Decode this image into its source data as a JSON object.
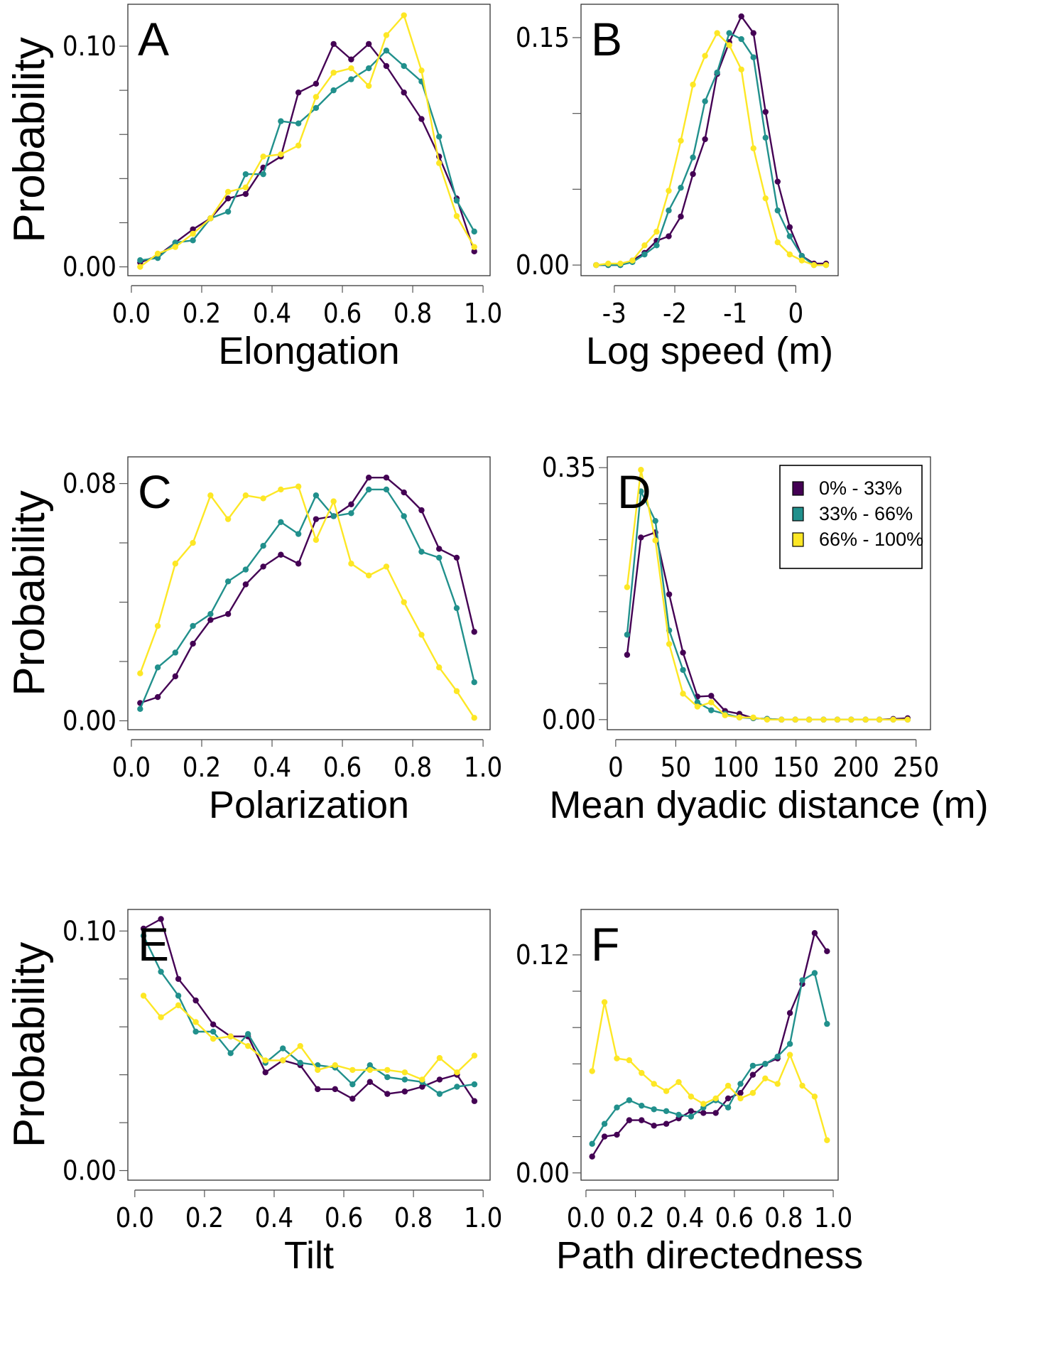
{
  "figure": {
    "series_styles": [
      {
        "name": "0% - 33%",
        "color": "#440154"
      },
      {
        "name": "33% - 66%",
        "color": "#21908C"
      },
      {
        "name": "66% - 100%",
        "color": "#FDE725"
      }
    ]
  },
  "chart_data": [
    {
      "panel": "A",
      "type": "line",
      "xlabel": "Elongation",
      "ylabel": "Probability",
      "xlim": [
        -0.01,
        1.02
      ],
      "ylim": [
        -0.004,
        0.119
      ],
      "xticks": [
        0.0,
        0.2,
        0.4,
        0.6,
        0.8,
        1.0
      ],
      "xtick_labels": [
        "0.0",
        "0.2",
        "0.4",
        "0.6",
        "0.8",
        "1.0"
      ],
      "yticks": [
        0.0,
        0.02,
        0.04,
        0.06,
        0.08,
        0.1
      ],
      "ytick_labels": [
        "0.00",
        "",
        "",
        "",
        "",
        "0.10"
      ],
      "x": [
        0.025,
        0.075,
        0.125,
        0.175,
        0.225,
        0.275,
        0.325,
        0.375,
        0.425,
        0.475,
        0.525,
        0.575,
        0.625,
        0.675,
        0.725,
        0.775,
        0.825,
        0.875,
        0.925,
        0.975
      ],
      "series": [
        {
          "name": "0% - 33%",
          "values": [
            0.002,
            0.005,
            0.011,
            0.017,
            0.022,
            0.031,
            0.033,
            0.045,
            0.05,
            0.079,
            0.083,
            0.101,
            0.094,
            0.101,
            0.091,
            0.079,
            0.067,
            0.05,
            0.031,
            0.007
          ]
        },
        {
          "name": "33% - 66%",
          "values": [
            0.003,
            0.004,
            0.011,
            0.012,
            0.022,
            0.025,
            0.042,
            0.042,
            0.066,
            0.065,
            0.072,
            0.08,
            0.085,
            0.09,
            0.098,
            0.091,
            0.084,
            0.059,
            0.03,
            0.016
          ]
        },
        {
          "name": "66% - 100%",
          "values": [
            0.0,
            0.006,
            0.009,
            0.015,
            0.022,
            0.034,
            0.036,
            0.05,
            0.051,
            0.055,
            0.077,
            0.088,
            0.09,
            0.082,
            0.105,
            0.114,
            0.089,
            0.047,
            0.023,
            0.009
          ]
        }
      ],
      "grid": false
    },
    {
      "panel": "B",
      "type": "line",
      "xlabel": "Log speed (m)",
      "ylabel": "",
      "xlim": [
        -3.55,
        0.7
      ],
      "ylim": [
        -0.007,
        0.172
      ],
      "xticks": [
        -3,
        -2,
        -1,
        0
      ],
      "xtick_labels": [
        "-3",
        "-2",
        "-1",
        "0"
      ],
      "yticks": [
        0.0,
        0.05,
        0.1,
        0.15
      ],
      "ytick_labels": [
        "0.00",
        "",
        "",
        "0.15"
      ],
      "x": [
        -3.3,
        -3.1,
        -2.9,
        -2.7,
        -2.5,
        -2.3,
        -2.1,
        -1.9,
        -1.7,
        -1.5,
        -1.3,
        -1.1,
        -0.9,
        -0.7,
        -0.5,
        -0.3,
        -0.1,
        0.1,
        0.3,
        0.5
      ],
      "series": [
        {
          "name": "0% - 33%",
          "values": [
            0.0,
            0.0,
            0.0,
            0.003,
            0.008,
            0.016,
            0.019,
            0.032,
            0.06,
            0.083,
            0.126,
            0.147,
            0.164,
            0.153,
            0.101,
            0.055,
            0.025,
            0.006,
            0.001,
            0.001
          ]
        },
        {
          "name": "33% - 66%",
          "values": [
            0.0,
            0.0,
            0.0,
            0.002,
            0.007,
            0.013,
            0.036,
            0.051,
            0.071,
            0.108,
            0.127,
            0.153,
            0.149,
            0.137,
            0.084,
            0.036,
            0.019,
            0.006,
            0.0,
            0.0
          ]
        },
        {
          "name": "66% - 100%",
          "values": [
            0.0,
            0.001,
            0.001,
            0.003,
            0.013,
            0.022,
            0.049,
            0.082,
            0.119,
            0.138,
            0.153,
            0.145,
            0.129,
            0.077,
            0.044,
            0.015,
            0.007,
            0.003,
            0.0,
            0.0
          ]
        }
      ],
      "grid": false
    },
    {
      "panel": "C",
      "type": "line",
      "xlabel": "Polarization",
      "ylabel": "Probability",
      "xlim": [
        -0.01,
        1.02
      ],
      "ylim": [
        -0.003,
        0.089
      ],
      "xticks": [
        0.0,
        0.2,
        0.4,
        0.6,
        0.8,
        1.0
      ],
      "xtick_labels": [
        "0.0",
        "0.2",
        "0.4",
        "0.6",
        "0.8",
        "1.0"
      ],
      "yticks": [
        0.0,
        0.02,
        0.04,
        0.06,
        0.08
      ],
      "ytick_labels": [
        "0.00",
        "",
        "",
        "",
        "0.08"
      ],
      "x": [
        0.025,
        0.075,
        0.125,
        0.175,
        0.225,
        0.275,
        0.325,
        0.375,
        0.425,
        0.475,
        0.525,
        0.575,
        0.625,
        0.675,
        0.725,
        0.775,
        0.825,
        0.875,
        0.925,
        0.975
      ],
      "series": [
        {
          "name": "0% - 33%",
          "values": [
            0.006,
            0.008,
            0.015,
            0.026,
            0.034,
            0.036,
            0.046,
            0.052,
            0.056,
            0.053,
            0.068,
            0.069,
            0.073,
            0.082,
            0.082,
            0.077,
            0.071,
            0.058,
            0.055,
            0.03
          ]
        },
        {
          "name": "33% - 66%",
          "values": [
            0.004,
            0.018,
            0.023,
            0.032,
            0.036,
            0.047,
            0.051,
            0.059,
            0.067,
            0.063,
            0.076,
            0.069,
            0.07,
            0.078,
            0.078,
            0.069,
            0.057,
            0.055,
            0.038,
            0.013
          ]
        },
        {
          "name": "66% - 100%",
          "values": [
            0.016,
            0.032,
            0.053,
            0.06,
            0.076,
            0.068,
            0.076,
            0.075,
            0.078,
            0.079,
            0.061,
            0.074,
            0.053,
            0.049,
            0.052,
            0.04,
            0.029,
            0.018,
            0.01,
            0.001
          ]
        }
      ],
      "grid": false
    },
    {
      "panel": "D",
      "type": "line",
      "xlabel": "Mean dyadic distance (m)",
      "ylabel": "",
      "xlim": [
        -7,
        262
      ],
      "ylim": [
        -0.014,
        0.365
      ],
      "xticks": [
        0,
        50,
        100,
        150,
        200,
        250
      ],
      "xtick_labels": [
        "0",
        "50",
        "100",
        "150",
        "200",
        "250"
      ],
      "yticks": [
        0.0,
        0.05,
        0.1,
        0.15,
        0.2,
        0.25,
        0.3,
        0.35
      ],
      "ytick_labels": [
        "0.00",
        "",
        "",
        "",
        "",
        "",
        "",
        "0.35"
      ],
      "x": [
        9.5,
        21,
        33,
        44.5,
        56,
        68,
        79.5,
        91,
        103,
        114.5,
        126,
        138,
        149.5,
        161,
        173,
        184.5,
        196,
        208,
        219.5,
        231,
        243
      ],
      "series": [
        {
          "name": "0% - 33%",
          "values": [
            0.09,
            0.253,
            0.26,
            0.174,
            0.093,
            0.032,
            0.033,
            0.012,
            0.008,
            0.002,
            0.001,
            0.0,
            0.0,
            0.0,
            0.0,
            0.0,
            0.0,
            0.0,
            0.0,
            0.001,
            0.002
          ]
        },
        {
          "name": "33% - 66%",
          "values": [
            0.118,
            0.317,
            0.276,
            0.124,
            0.069,
            0.024,
            0.013,
            0.008,
            0.003,
            0.002,
            0.001,
            0.0,
            0.0,
            0.0,
            0.0,
            0.0,
            0.0,
            0.0,
            0.0,
            0.0,
            0.0
          ]
        },
        {
          "name": "66% - 100%",
          "values": [
            0.184,
            0.347,
            0.249,
            0.105,
            0.036,
            0.018,
            0.024,
            0.006,
            0.003,
            0.003,
            0.0,
            0.0,
            0.0,
            0.0,
            0.0,
            0.0,
            0.0,
            0.0,
            0.0,
            0.0,
            0.0
          ]
        }
      ],
      "legend": {
        "position": "top-right",
        "entries": [
          "0% - 33%",
          "33% - 66%",
          "66% - 100%"
        ]
      },
      "grid": false
    },
    {
      "panel": "E",
      "type": "line",
      "xlabel": "Tilt",
      "ylabel": "Probability",
      "xlim": [
        -0.02,
        1.02
      ],
      "ylim": [
        -0.004,
        0.109
      ],
      "xticks": [
        0.0,
        0.2,
        0.4,
        0.6,
        0.8,
        1.0
      ],
      "xtick_labels": [
        "0.0",
        "0.2",
        "0.4",
        "0.6",
        "0.8",
        "1.0"
      ],
      "yticks": [
        0.0,
        0.02,
        0.04,
        0.06,
        0.08,
        0.1
      ],
      "ytick_labels": [
        "0.00",
        "",
        "",
        "",
        "",
        "0.10"
      ],
      "x": [
        0.025,
        0.075,
        0.125,
        0.175,
        0.225,
        0.275,
        0.325,
        0.375,
        0.425,
        0.475,
        0.525,
        0.575,
        0.625,
        0.675,
        0.725,
        0.775,
        0.825,
        0.875,
        0.925,
        0.975
      ],
      "series": [
        {
          "name": "0% - 33%",
          "values": [
            0.101,
            0.105,
            0.08,
            0.071,
            0.061,
            0.056,
            0.056,
            0.041,
            0.046,
            0.044,
            0.034,
            0.034,
            0.03,
            0.037,
            0.032,
            0.033,
            0.035,
            0.038,
            0.04,
            0.029
          ]
        },
        {
          "name": "33% - 66%",
          "values": [
            0.098,
            0.083,
            0.073,
            0.058,
            0.058,
            0.049,
            0.057,
            0.045,
            0.051,
            0.045,
            0.044,
            0.043,
            0.036,
            0.044,
            0.039,
            0.038,
            0.037,
            0.032,
            0.035,
            0.036
          ]
        },
        {
          "name": "66% - 100%",
          "values": [
            0.073,
            0.064,
            0.069,
            0.062,
            0.055,
            0.056,
            0.052,
            0.046,
            0.046,
            0.052,
            0.042,
            0.044,
            0.042,
            0.042,
            0.042,
            0.041,
            0.038,
            0.047,
            0.041,
            0.048
          ]
        }
      ],
      "grid": false
    },
    {
      "panel": "F",
      "type": "line",
      "xlabel": "Path directedness",
      "ylabel": "",
      "xlim": [
        -0.02,
        1.02
      ],
      "ylim": [
        -0.004,
        0.145
      ],
      "xticks": [
        0.0,
        0.2,
        0.4,
        0.6,
        0.8,
        1.0
      ],
      "xtick_labels": [
        "0.0",
        "0.2",
        "0.4",
        "0.6",
        "0.8",
        "1.0"
      ],
      "yticks": [
        0.0,
        0.02,
        0.04,
        0.06,
        0.08,
        0.1,
        0.12
      ],
      "ytick_labels": [
        "0.00",
        "",
        "",
        "",
        "",
        "",
        "0.12"
      ],
      "x": [
        0.025,
        0.075,
        0.125,
        0.175,
        0.225,
        0.275,
        0.325,
        0.375,
        0.425,
        0.475,
        0.525,
        0.575,
        0.625,
        0.675,
        0.725,
        0.775,
        0.825,
        0.875,
        0.925,
        0.975
      ],
      "series": [
        {
          "name": "0% - 33%",
          "values": [
            0.009,
            0.02,
            0.021,
            0.029,
            0.029,
            0.026,
            0.027,
            0.03,
            0.034,
            0.033,
            0.033,
            0.041,
            0.044,
            0.054,
            0.06,
            0.063,
            0.088,
            0.104,
            0.132,
            0.122
          ]
        },
        {
          "name": "33% - 66%",
          "values": [
            0.016,
            0.027,
            0.036,
            0.04,
            0.037,
            0.035,
            0.034,
            0.032,
            0.031,
            0.036,
            0.04,
            0.036,
            0.049,
            0.059,
            0.06,
            0.064,
            0.071,
            0.106,
            0.11,
            0.082
          ]
        },
        {
          "name": "66% - 100%",
          "values": [
            0.056,
            0.094,
            0.063,
            0.062,
            0.055,
            0.049,
            0.045,
            0.05,
            0.042,
            0.038,
            0.041,
            0.048,
            0.041,
            0.044,
            0.052,
            0.049,
            0.065,
            0.048,
            0.042,
            0.018
          ]
        }
      ],
      "grid": false
    }
  ]
}
